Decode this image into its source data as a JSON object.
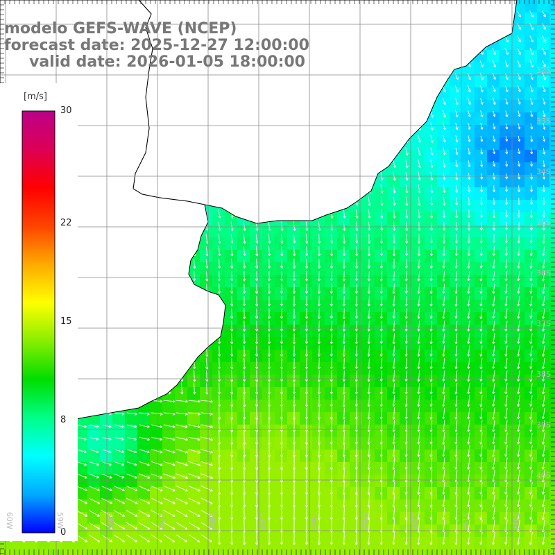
{
  "title": {
    "line1": "modelo GEFS-WAVE (NCEP)",
    "line2": "forecast date: 2025-12-27 12:00:00",
    "line3": "valid date: 2026-01-05 18:00:00"
  },
  "legend": {
    "unit": "[m/s]",
    "min": 0,
    "max": 30,
    "ticks": [
      {
        "label": "30",
        "value": 30
      },
      {
        "label": "22",
        "value": 22
      },
      {
        "label": "15",
        "value": 15
      },
      {
        "label": "8",
        "value": 8
      },
      {
        "label": "0",
        "value": 0
      }
    ],
    "colors": [
      "#0000ff",
      "#00aaff",
      "#00ffff",
      "#00ff88",
      "#00dd00",
      "#88ee00",
      "#ffff00",
      "#ffaa00",
      "#ff4400",
      "#ff0000",
      "#dd0055",
      "#bb0088"
    ]
  },
  "grid": {
    "lat_labels": [
      "32S",
      "33S",
      "34S",
      "35S",
      "36S",
      "37S",
      "38S",
      "39S",
      "40S"
    ],
    "lon_labels": [
      "60W",
      "59W",
      "58W",
      "57W",
      "56W",
      "55W",
      "54W",
      "53W",
      "52W",
      "51W",
      "50W"
    ]
  },
  "colors": {
    "land": "#ffffff",
    "coast": "#000000",
    "grid_line": "#888888",
    "arrow": "#ffffff",
    "title_text": "#777777"
  }
}
